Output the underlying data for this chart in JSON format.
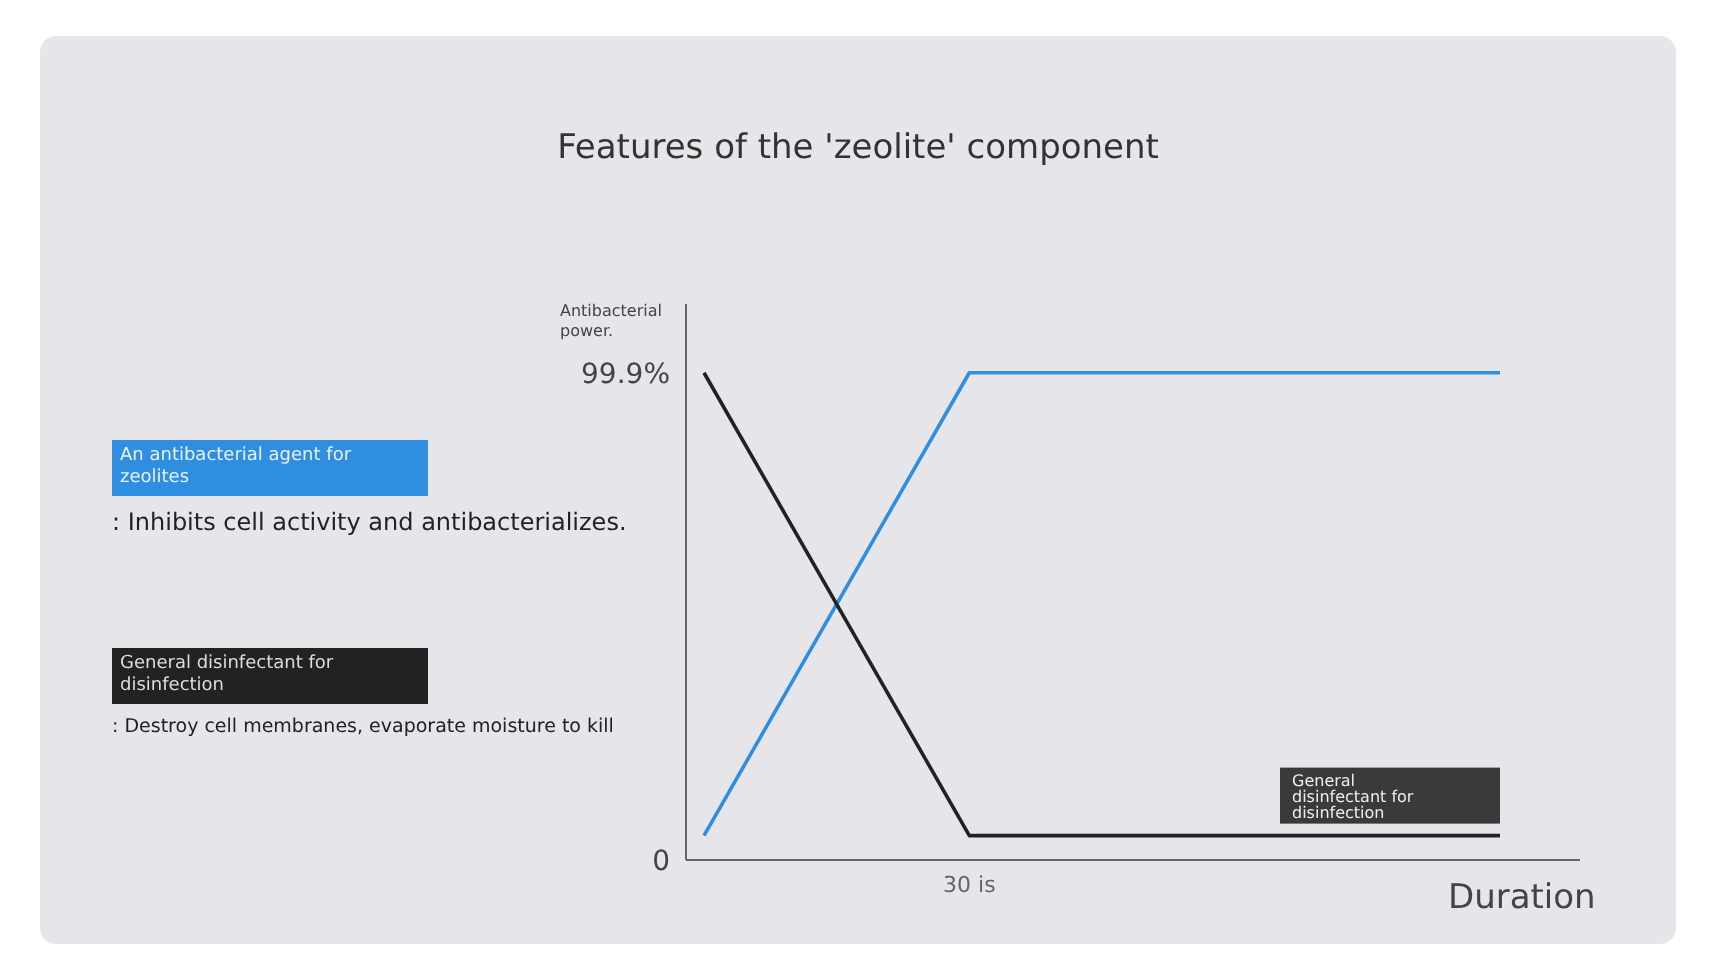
{
  "chart_data": {
    "type": "line",
    "title": "Features of the 'zeolite' component",
    "xlabel": "Duration",
    "ylabel": "Antibacterial power.",
    "categories": [
      null,
      "30 is",
      null,
      null
    ],
    "series": [
      {
        "name": "An antibacterial agent for zeolites",
        "color": "#2f8ee0",
        "values": [
          5,
          99.9,
          99.9,
          99.9
        ]
      },
      {
        "name": "General disinfectant for disinfection",
        "color": "#222222",
        "values": [
          99.9,
          5,
          5,
          5
        ]
      }
    ],
    "annotations": [
      ": Inhibits cell activity and antibacterializes.",
      ": Destroy cell membranes, evaporate moisture to kill"
    ],
    "ylim": [
      0,
      114
    ],
    "yticks": [
      {
        "value": 0,
        "label": "0"
      },
      {
        "value": 99.9,
        "label": "99.9%"
      }
    ],
    "legend": "left",
    "marker": "none",
    "line_style": "solid"
  }
}
